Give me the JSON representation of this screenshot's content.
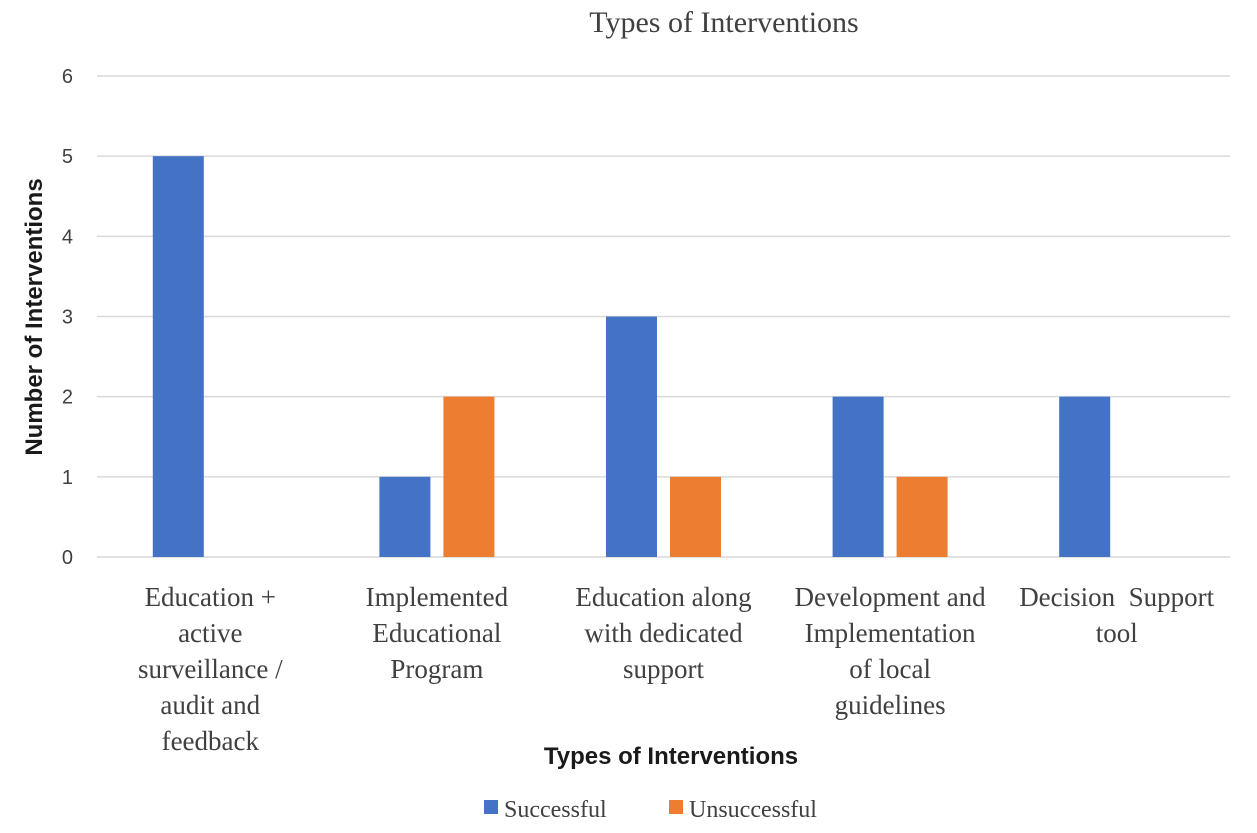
{
  "chart_data": {
    "type": "bar",
    "title": "Types of Interventions",
    "xlabel": "Types of Interventions",
    "ylabel": "Number of Interventions",
    "ylim": [
      0,
      6
    ],
    "yticks": [
      0,
      1,
      2,
      3,
      4,
      5,
      6
    ],
    "grid": true,
    "legend": "bottom",
    "categories": [
      [
        "Education +",
        "active",
        "surveillance /",
        "audit and",
        "feedback"
      ],
      [
        "Implemented",
        "Educational",
        "Program"
      ],
      [
        "Education along",
        "with dedicated",
        "support"
      ],
      [
        "Development and",
        "Implementation",
        "of local",
        "guidelines"
      ],
      [
        "Decision  Support",
        "tool"
      ]
    ],
    "series": [
      {
        "name": "Successful",
        "color": "#4472c4",
        "values": [
          5,
          1,
          3,
          2,
          2
        ]
      },
      {
        "name": "Unsuccessful",
        "color": "#ed7d31",
        "values": [
          0,
          2,
          1,
          1,
          0
        ]
      }
    ]
  }
}
